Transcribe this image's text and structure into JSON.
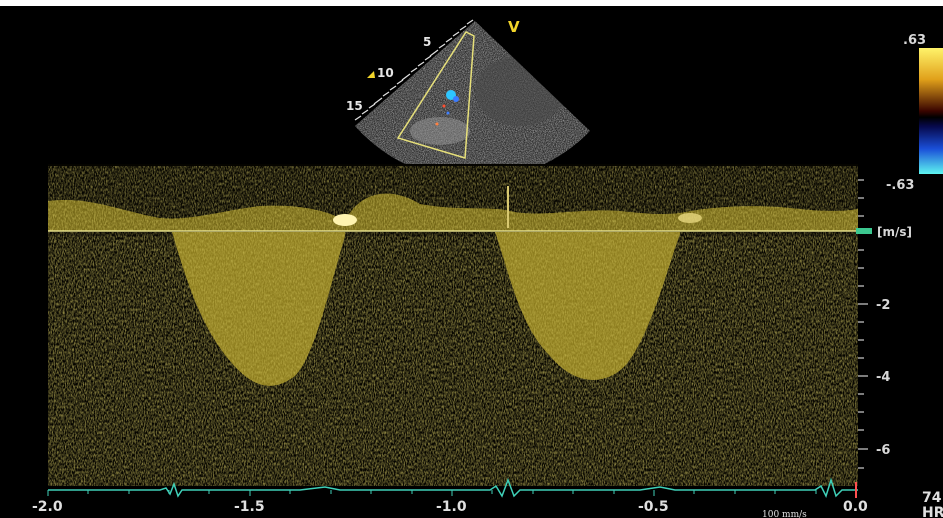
{
  "sector": {
    "view_marker": "V",
    "depth_labels": [
      "5",
      "10",
      "15"
    ]
  },
  "color_scale": {
    "top": ".63",
    "bottom": "-.63"
  },
  "velocity_scale": {
    "unit": "[m/s]",
    "labels": [
      "-2",
      "-4",
      "-6"
    ]
  },
  "time_axis": {
    "labels": [
      "-2.0",
      "-1.5",
      "-1.0",
      "-0.5",
      "0.0"
    ],
    "sweep": "100 mm/s"
  },
  "heart_rate": {
    "value": "74",
    "unit": "HR"
  },
  "colors": {
    "doppler": "#c9b430",
    "scale_text": "#d8d8d8",
    "ecg": "#3fd0b8",
    "baseline": "#e6e08a",
    "marker_yellow": "#f2d52a"
  }
}
